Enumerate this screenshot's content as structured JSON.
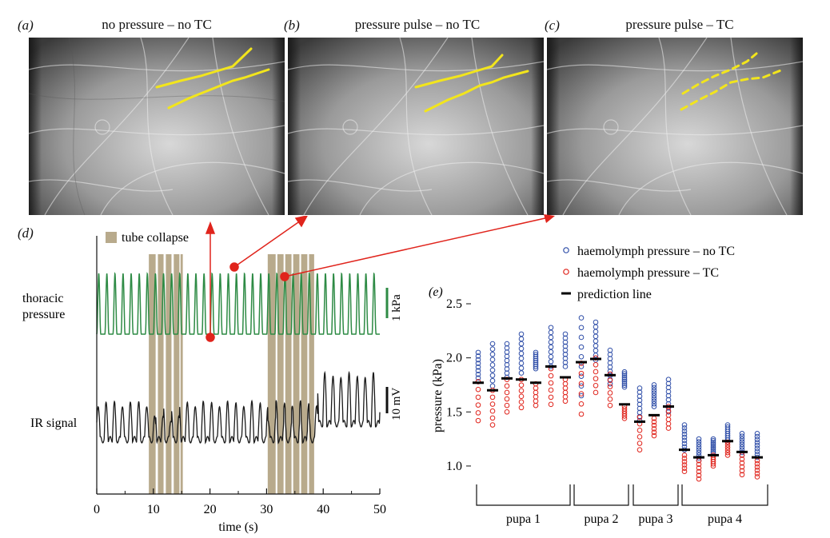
{
  "figure": {
    "panels": [
      {
        "letter": "(a)",
        "title": "no pressure – no TC"
      },
      {
        "letter": "(b)",
        "title": "pressure pulse – no TC"
      },
      {
        "letter": "(c)",
        "title": "pressure pulse – TC"
      }
    ],
    "panel_d": {
      "letter": "(d)",
      "legend_tube_collapse": "tube collapse",
      "trace_label_pressure_1": "thoracic",
      "trace_label_pressure_2": "pressure",
      "trace_label_ir": "IR signal",
      "scale_pressure": "1 kPa",
      "scale_ir": "10 mV",
      "xlabel": "time (s)",
      "xticks": [
        "0",
        "10",
        "20",
        "30",
        "40",
        "50"
      ],
      "tube_collapse_intervals_s": [
        [
          9.2,
          10.4
        ],
        [
          10.8,
          11.8
        ],
        [
          12.2,
          13.2
        ],
        [
          13.6,
          14.6
        ],
        [
          14.8,
          15.2
        ],
        [
          30.2,
          31.6
        ],
        [
          31.9,
          33.0
        ],
        [
          33.3,
          34.4
        ],
        [
          34.7,
          35.8
        ],
        [
          36.1,
          37.2
        ],
        [
          37.5,
          38.4
        ]
      ],
      "colors": {
        "pressure": "#2e8b45",
        "ir": "#1a1a1a",
        "tube": "#b8aa8c",
        "arrow": "#e0241c"
      }
    },
    "panel_e": {
      "letter": "(e)",
      "legend": [
        "haemolymph pressure – no TC",
        "haemolymph pressure – TC",
        "prediction line"
      ],
      "ylabel": "pressure (kPa)",
      "groups": [
        "pupa 1",
        "pupa 2",
        "pupa 3",
        "pupa 4"
      ],
      "colors": {
        "no_tc": "#2f4ea8",
        "tc": "#e0241c",
        "prediction": "#000000"
      }
    }
  },
  "chart_data": [
    {
      "type": "line",
      "title": "",
      "xlabel": "time (s)",
      "ylabel": "",
      "xlim": [
        0,
        50
      ],
      "series": [
        {
          "name": "thoracic pressure",
          "period_s": 1.43,
          "amplitude_kPa": 1.2
        },
        {
          "name": "IR signal",
          "period_s": 1.43,
          "amplitude_mV": 10
        }
      ]
    },
    {
      "type": "scatter",
      "title": "",
      "xlabel": "",
      "ylabel": "pressure (kPa)",
      "ylim": [
        0.8,
        2.5
      ],
      "yticks": [
        1.0,
        1.5,
        2.0,
        2.5
      ],
      "columns": [
        {
          "group": "pupa 1",
          "no_tc": [
            1.78,
            2.05
          ],
          "tc": [
            1.42,
            1.78
          ],
          "prediction": 1.77
        },
        {
          "group": "pupa 1",
          "no_tc": [
            1.74,
            2.13
          ],
          "tc": [
            1.38,
            1.7
          ],
          "prediction": 1.7
        },
        {
          "group": "pupa 1",
          "no_tc": [
            1.82,
            2.13
          ],
          "tc": [
            1.5,
            1.8
          ],
          "prediction": 1.81
        },
        {
          "group": "pupa 1",
          "no_tc": [
            1.86,
            2.22
          ],
          "tc": [
            1.54,
            1.8
          ],
          "prediction": 1.8
        },
        {
          "group": "pupa 1",
          "no_tc": [
            1.9,
            2.05
          ],
          "tc": [
            1.56,
            1.76
          ],
          "prediction": 1.77
        },
        {
          "group": "pupa 1",
          "no_tc": [
            1.92,
            2.28
          ],
          "tc": [
            1.57,
            1.9
          ],
          "prediction": 1.92
        },
        {
          "group": "pupa 1",
          "no_tc": [
            1.92,
            2.22
          ],
          "tc": [
            1.6,
            1.8
          ],
          "prediction": 1.82
        },
        {
          "group": "pupa 2",
          "no_tc": [
            1.65,
            2.37
          ],
          "tc": [
            1.48,
            1.95
          ],
          "prediction": 1.96
        },
        {
          "group": "pupa 2",
          "no_tc": [
            1.98,
            2.33
          ],
          "tc": [
            1.68,
            2.0
          ],
          "prediction": 1.99
        },
        {
          "group": "pupa 2",
          "no_tc": [
            1.76,
            2.07
          ],
          "tc": [
            1.56,
            1.85
          ],
          "prediction": 1.84
        },
        {
          "group": "pupa 2",
          "no_tc": [
            1.73,
            1.87
          ],
          "tc": [
            1.44,
            1.55
          ],
          "prediction": 1.57
        },
        {
          "group": "pupa 3",
          "no_tc": [
            1.42,
            1.72
          ],
          "tc": [
            1.15,
            1.45
          ],
          "prediction": 1.41
        },
        {
          "group": "pupa 3",
          "no_tc": [
            1.55,
            1.75
          ],
          "tc": [
            1.28,
            1.44
          ],
          "prediction": 1.47
        },
        {
          "group": "pupa 3",
          "no_tc": [
            1.5,
            1.8
          ],
          "tc": [
            1.35,
            1.55
          ],
          "prediction": 1.55
        },
        {
          "group": "pupa 4",
          "no_tc": [
            1.15,
            1.38
          ],
          "tc": [
            0.95,
            1.1
          ],
          "prediction": 1.15
        },
        {
          "group": "pupa 4",
          "no_tc": [
            1.05,
            1.25
          ],
          "tc": [
            0.88,
            1.05
          ],
          "prediction": 1.08
        },
        {
          "group": "pupa 4",
          "no_tc": [
            1.12,
            1.25
          ],
          "tc": [
            1.0,
            1.1
          ],
          "prediction": 1.1
        },
        {
          "group": "pupa 4",
          "no_tc": [
            1.22,
            1.38
          ],
          "tc": [
            1.1,
            1.22
          ],
          "prediction": 1.23
        },
        {
          "group": "pupa 4",
          "no_tc": [
            1.1,
            1.3
          ],
          "tc": [
            0.92,
            1.1
          ],
          "prediction": 1.13
        },
        {
          "group": "pupa 4",
          "no_tc": [
            1.08,
            1.3
          ],
          "tc": [
            0.9,
            1.05
          ],
          "prediction": 1.08
        }
      ]
    }
  ]
}
